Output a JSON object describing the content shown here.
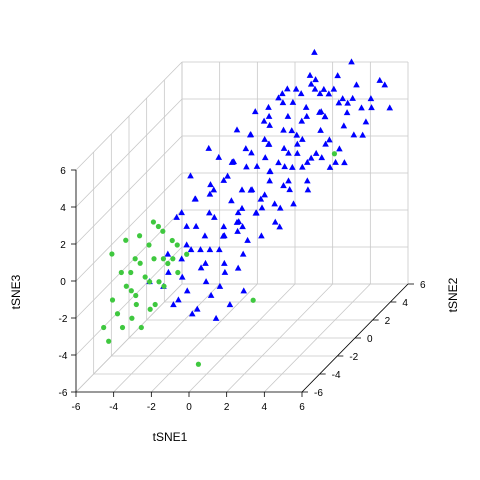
{
  "chart_data": {
    "type": "scatter",
    "title": "",
    "xlabel": "tSNE1",
    "ylabel": "tSNE2",
    "zlabel": "tSNE3",
    "xlim": [
      -6,
      6
    ],
    "ylim": [
      -6,
      6
    ],
    "zlim": [
      -6,
      6
    ],
    "x_ticks": [
      "-6",
      "-4",
      "-2",
      "0",
      "2",
      "4",
      "6"
    ],
    "y_ticks": [
      "-6",
      "-4",
      "-2",
      "0",
      "2",
      "4",
      "6"
    ],
    "z_ticks": [
      "-6",
      "-4",
      "-2",
      "0",
      "2",
      "4",
      "6"
    ],
    "grid": true,
    "series": [
      {
        "color": "#0000ff",
        "marker": "triangle",
        "points": [
          [
            -2.5,
            -1.5,
            1.5
          ],
          [
            -2,
            -1,
            2
          ],
          [
            -1.5,
            -2,
            1
          ],
          [
            -1,
            -1.5,
            2.5
          ],
          [
            -0.5,
            -1,
            3
          ],
          [
            0,
            -1.2,
            2
          ],
          [
            0.5,
            -1.5,
            1.5
          ],
          [
            1,
            -1,
            2.5
          ],
          [
            -1.5,
            0,
            2
          ],
          [
            -1,
            0.5,
            2.5
          ],
          [
            -0.5,
            0,
            3.5
          ],
          [
            0,
            0.5,
            3
          ],
          [
            0.5,
            0,
            4
          ],
          [
            1,
            0.5,
            3.5
          ],
          [
            1.5,
            0,
            3
          ],
          [
            2,
            0.5,
            4
          ],
          [
            -1,
            1,
            3
          ],
          [
            -0.5,
            1.5,
            3.5
          ],
          [
            0,
            1,
            4.5
          ],
          [
            0.5,
            1.5,
            4
          ],
          [
            1,
            1,
            5
          ],
          [
            1.5,
            1.5,
            4.5
          ],
          [
            2,
            1,
            3.5
          ],
          [
            2.5,
            1.5,
            4
          ],
          [
            3,
            1,
            3
          ],
          [
            -0.5,
            2,
            4
          ],
          [
            0,
            2.5,
            4.5
          ],
          [
            0.5,
            2,
            5
          ],
          [
            1,
            2.5,
            5.5
          ],
          [
            1.5,
            2,
            5
          ],
          [
            2,
            2.5,
            4.5
          ],
          [
            2.5,
            2,
            5
          ],
          [
            3,
            2.5,
            4
          ],
          [
            3.5,
            2,
            3.5
          ],
          [
            0,
            3,
            5
          ],
          [
            0.5,
            3.5,
            5.5
          ],
          [
            1,
            3,
            6
          ],
          [
            1.5,
            3.5,
            5.5
          ],
          [
            2,
            3,
            5
          ],
          [
            2.5,
            3.5,
            5.5
          ],
          [
            3,
            3,
            4.5
          ],
          [
            3.5,
            3.5,
            5
          ],
          [
            4,
            3,
            4
          ],
          [
            1,
            4,
            5.5
          ],
          [
            1.5,
            4.5,
            6
          ],
          [
            2,
            4,
            5.5
          ],
          [
            2.5,
            4.5,
            5
          ],
          [
            3,
            4,
            5.5
          ],
          [
            3.5,
            4.5,
            4.5
          ],
          [
            4,
            4,
            5
          ],
          [
            2,
            5,
            5
          ],
          [
            2.5,
            5.5,
            5.5
          ],
          [
            3,
            5,
            4.5
          ],
          [
            3.5,
            5.5,
            5
          ],
          [
            4,
            5,
            4
          ],
          [
            4.5,
            5,
            4.5
          ],
          [
            -2,
            -1.5,
            -0.5
          ],
          [
            -1.5,
            -1,
            0
          ],
          [
            -1,
            -1.5,
            -0.5
          ],
          [
            -0.5,
            -1,
            0.5
          ],
          [
            0,
            -0.5,
            0
          ],
          [
            0.5,
            -1,
            0.5
          ],
          [
            1,
            -0.5,
            1
          ],
          [
            1.5,
            -1,
            0
          ],
          [
            2,
            -0.5,
            0.5
          ],
          [
            -1,
            0,
            -0.5
          ],
          [
            -0.5,
            0.5,
            0
          ],
          [
            0,
            0,
            1
          ],
          [
            0.5,
            0.5,
            0.5
          ],
          [
            1,
            0,
            1.5
          ],
          [
            1.5,
            0.5,
            1
          ],
          [
            2,
            0,
            0
          ],
          [
            2.5,
            0.5,
            1
          ],
          [
            0,
            1,
            1.5
          ],
          [
            0.5,
            1.5,
            1
          ],
          [
            1,
            1,
            2
          ],
          [
            1.5,
            1.5,
            1.5
          ],
          [
            2,
            1,
            2
          ],
          [
            2.5,
            1.5,
            2.5
          ],
          [
            3,
            1,
            2
          ],
          [
            1,
            2,
            2.5
          ],
          [
            1.5,
            2.5,
            2
          ],
          [
            2,
            2,
            3
          ],
          [
            2.5,
            2.5,
            2.5
          ],
          [
            3,
            2,
            3
          ],
          [
            3.5,
            2.5,
            2
          ],
          [
            -3.5,
            -3,
            -1.5
          ],
          [
            -3,
            -2.5,
            -2
          ],
          [
            -2.5,
            -3,
            -1
          ],
          [
            -2,
            -2.5,
            -1.5
          ],
          [
            -1.5,
            -3,
            -2
          ],
          [
            -1,
            -2.5,
            -1
          ],
          [
            -0.5,
            -3,
            -1.5
          ],
          [
            0,
            -2.5,
            -2
          ],
          [
            0.5,
            -3,
            -1
          ],
          [
            -3,
            -2,
            -0.5
          ],
          [
            -2.5,
            -1.5,
            -1
          ],
          [
            -2,
            -2,
            0
          ],
          [
            -1.5,
            -1.5,
            -0.5
          ],
          [
            -1,
            -2,
            -1
          ],
          [
            -0.5,
            -1.5,
            -0.5
          ],
          [
            0,
            -2,
            -1
          ],
          [
            0.5,
            -1.5,
            -1.5
          ],
          [
            1,
            -2,
            -0.5
          ],
          [
            -2,
            -3.5,
            -2.5
          ],
          [
            -1.5,
            -4,
            -2
          ],
          [
            -1,
            -3.5,
            -3
          ],
          [
            -0.5,
            -4,
            -2.5
          ],
          [
            0,
            -3.5,
            -2
          ],
          [
            0.5,
            -4,
            -3
          ],
          [
            1,
            -3.5,
            -2.5
          ],
          [
            1.5,
            -3,
            -2
          ],
          [
            -0.5,
            -2.5,
            3.5
          ],
          [
            0.5,
            -2,
            4.5
          ],
          [
            1.5,
            -1.5,
            4
          ],
          [
            -2.5,
            -0.5,
            3
          ],
          [
            -2,
            0.5,
            4
          ],
          [
            2.5,
            -0.5,
            3.5
          ],
          [
            4,
            0.5,
            3.5
          ],
          [
            4.5,
            2,
            2.5
          ],
          [
            5,
            3,
            3.5
          ],
          [
            5,
            4,
            4.5
          ],
          [
            5.5,
            5,
            4
          ],
          [
            4.5,
            6,
            5
          ],
          [
            3,
            6,
            6
          ],
          [
            1.5,
            5,
            7
          ],
          [
            3.5,
            1.5,
            5.5
          ],
          [
            2.5,
            3,
            6.5
          ],
          [
            -1.5,
            -0.5,
            1
          ],
          [
            0,
            -2,
            0.5
          ],
          [
            1,
            -1.5,
            0
          ],
          [
            2.5,
            -1,
            1.5
          ],
          [
            -3,
            -1,
            1
          ],
          [
            -2.5,
            0,
            1.5
          ],
          [
            0.5,
            2,
            3.5
          ],
          [
            1.5,
            3,
            3.5
          ],
          [
            3,
            3.5,
            3
          ],
          [
            4,
            2.5,
            3
          ],
          [
            -0.5,
            0.5,
            5
          ],
          [
            0,
            1.5,
            5.5
          ],
          [
            1,
            2,
            6
          ],
          [
            2,
            1.5,
            6
          ],
          [
            2.5,
            2.5,
            6.5
          ],
          [
            -1,
            -0.5,
            4
          ],
          [
            1,
            -2.5,
            1.5
          ],
          [
            2,
            -2,
            2
          ],
          [
            3,
            -1,
            2.5
          ],
          [
            3.5,
            0,
            2
          ],
          [
            4.5,
            1,
            3
          ],
          [
            5,
            2,
            4
          ],
          [
            0,
            3,
            3
          ],
          [
            1,
            3.5,
            3.5
          ],
          [
            2,
            4.5,
            4
          ],
          [
            3,
            5.5,
            3.5
          ],
          [
            4,
            5.5,
            3
          ],
          [
            5,
            5.5,
            5
          ],
          [
            -2,
            -2,
            1
          ],
          [
            -1,
            -1,
            1
          ],
          [
            0,
            0,
            2
          ],
          [
            1,
            1,
            2.5
          ],
          [
            2,
            2,
            3.5
          ],
          [
            3,
            3,
            4.5
          ]
        ]
      },
      {
        "color": "#3fc83f",
        "marker": "circle",
        "points": [
          [
            -5,
            -3,
            -1
          ],
          [
            -4.5,
            -3.5,
            -1.5
          ],
          [
            -4,
            -3,
            -0.5
          ],
          [
            -3.5,
            -3.5,
            -1
          ],
          [
            -3,
            -3,
            -1.5
          ],
          [
            -4.5,
            -2.5,
            -0.5
          ],
          [
            -4,
            -2,
            0
          ],
          [
            -3.5,
            -2.5,
            -0.5
          ],
          [
            -3,
            -2,
            -1
          ],
          [
            -2.5,
            -2.5,
            -0.5
          ],
          [
            -5,
            -4,
            -2
          ],
          [
            -4.5,
            -4.5,
            -2.5
          ],
          [
            -4,
            -4,
            -1.5
          ],
          [
            -3.5,
            -4.5,
            -2
          ],
          [
            -3,
            -4,
            -2.5
          ],
          [
            -5.5,
            -3,
            0
          ],
          [
            -5,
            -2.5,
            0.5
          ],
          [
            -4.5,
            -2,
            0.5
          ],
          [
            -3.5,
            -1.5,
            0.5
          ],
          [
            -3,
            -1.5,
            0
          ],
          [
            -4,
            -5,
            -3
          ],
          [
            -3.5,
            -5,
            -2.5
          ],
          [
            -2.5,
            -3.5,
            -1.5
          ],
          [
            -2,
            -3,
            -1
          ],
          [
            -2.5,
            -4.5,
            -2
          ],
          [
            -4,
            -1.5,
            1
          ],
          [
            -3.5,
            -2,
            1
          ],
          [
            -5,
            -5,
            -3
          ],
          [
            -4.5,
            -5.5,
            -3.5
          ],
          [
            -3,
            -5,
            -3
          ],
          [
            -4.5,
            -3,
            -1
          ],
          [
            -4,
            -3.5,
            -2
          ],
          [
            -3.5,
            -3,
            -1.5
          ],
          [
            -3,
            -2.5,
            -0.5
          ],
          [
            -2,
            -2,
            -0.5
          ],
          [
            -2.5,
            -2,
            0
          ],
          [
            0.5,
            -6,
            -4.5
          ],
          [
            3.5,
            3,
            2.5
          ],
          [
            2,
            -3,
            -2.5
          ]
        ]
      }
    ]
  }
}
